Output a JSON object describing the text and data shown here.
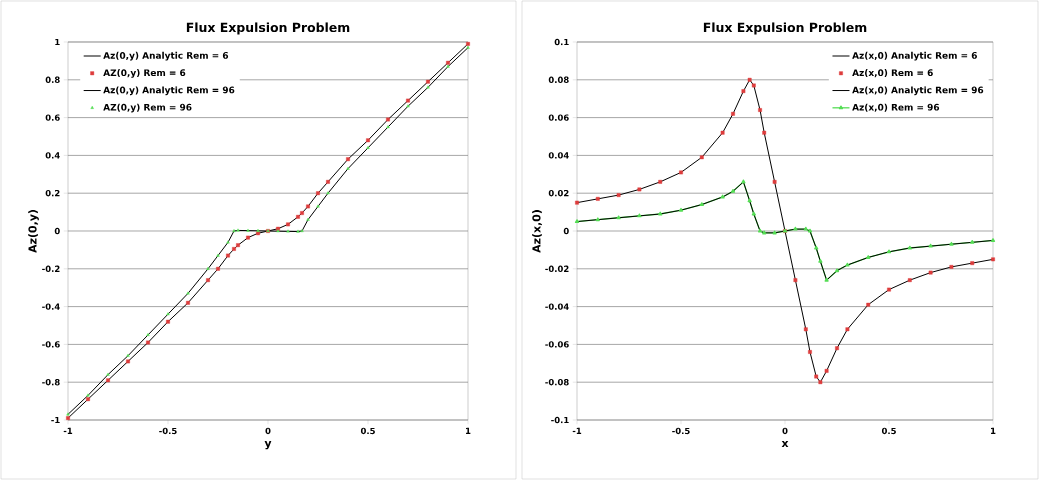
{
  "chart_data": [
    {
      "type": "line",
      "title": "Flux Expulsion Problem",
      "xlabel": "y",
      "ylabel": "Az(0,y)",
      "xlim": [
        -1,
        1
      ],
      "ylim": [
        -1,
        1
      ],
      "xticks": [
        -1,
        -0.5,
        0,
        0.5,
        1
      ],
      "yticks": [
        -1,
        -0.8,
        -0.6,
        -0.4,
        -0.2,
        0,
        0.2,
        0.4,
        0.6,
        0.8,
        1
      ],
      "grid": "y",
      "legend": "top left",
      "x": [
        -1,
        -0.9,
        -0.8,
        -0.7,
        -0.6,
        -0.5,
        -0.4,
        -0.3,
        -0.25,
        -0.2,
        -0.17,
        -0.15,
        -0.1,
        -0.05,
        0,
        0.05,
        0.1,
        0.15,
        0.17,
        0.2,
        0.25,
        0.3,
        0.4,
        0.5,
        0.6,
        0.7,
        0.8,
        0.9,
        1
      ],
      "series": [
        {
          "name": "Az(0,y) Analytic Rem = 6",
          "color": "#000000",
          "marker": "none",
          "values": [
            -0.99,
            -0.89,
            -0.79,
            -0.69,
            -0.59,
            -0.48,
            -0.38,
            -0.26,
            -0.2,
            -0.13,
            -0.095,
            -0.075,
            -0.035,
            -0.012,
            0,
            0.012,
            0.035,
            0.075,
            0.095,
            0.13,
            0.2,
            0.26,
            0.38,
            0.48,
            0.59,
            0.69,
            0.79,
            0.89,
            0.99
          ]
        },
        {
          "name": "AZ(0,y) Rem = 6",
          "type": "scatter",
          "color": "#dd3c3c",
          "marker": "square",
          "values": [
            -0.99,
            -0.89,
            -0.79,
            -0.69,
            -0.59,
            -0.48,
            -0.38,
            -0.26,
            -0.2,
            -0.13,
            -0.095,
            -0.075,
            -0.035,
            -0.012,
            0,
            0.012,
            0.035,
            0.075,
            0.095,
            0.13,
            0.2,
            0.26,
            0.38,
            0.48,
            0.59,
            0.69,
            0.79,
            0.89,
            0.99
          ]
        },
        {
          "name": "Az(0,y) Analytic Rem = 96",
          "color": "#000000",
          "marker": "none",
          "values": [
            -0.97,
            -0.87,
            -0.76,
            -0.66,
            -0.55,
            -0.44,
            -0.33,
            -0.2,
            -0.13,
            -0.06,
            0,
            0.003,
            0.002,
            0.001,
            0,
            -0.001,
            -0.002,
            -0.003,
            0,
            0.06,
            0.13,
            0.2,
            0.33,
            0.44,
            0.55,
            0.66,
            0.76,
            0.87,
            0.97
          ]
        },
        {
          "name": "AZ(0,y) Rem = 96",
          "type": "scatter",
          "color": "#55dd55",
          "marker": "triangle",
          "values": [
            -0.97,
            -0.87,
            -0.76,
            -0.66,
            -0.55,
            -0.44,
            -0.33,
            -0.2,
            -0.13,
            -0.06,
            0,
            0.003,
            0.002,
            0.001,
            0,
            -0.001,
            -0.002,
            -0.003,
            0,
            0.06,
            0.13,
            0.2,
            0.33,
            0.44,
            0.55,
            0.66,
            0.76,
            0.87,
            0.97
          ]
        }
      ]
    },
    {
      "type": "line",
      "title": "Flux Expulsion Problem",
      "xlabel": "x",
      "ylabel": "Az(x,0)",
      "xlim": [
        -1,
        1
      ],
      "ylim": [
        -0.1,
        0.1
      ],
      "xticks": [
        -1,
        -0.5,
        0,
        0.5,
        1
      ],
      "yticks": [
        -0.1,
        -0.08,
        -0.06,
        -0.04,
        -0.02,
        0,
        0.02,
        0.04,
        0.06,
        0.08,
        0.1
      ],
      "grid": "y",
      "legend": "top right",
      "x": [
        -1,
        -0.9,
        -0.8,
        -0.7,
        -0.6,
        -0.5,
        -0.4,
        -0.3,
        -0.25,
        -0.2,
        -0.17,
        -0.15,
        -0.12,
        -0.1,
        -0.05,
        0,
        0.05,
        0.1,
        0.12,
        0.15,
        0.17,
        0.2,
        0.25,
        0.3,
        0.4,
        0.5,
        0.6,
        0.7,
        0.8,
        0.9,
        1
      ],
      "series": [
        {
          "name": "Az(x,0) Analytic Rem = 6",
          "color": "#000000",
          "marker": "none",
          "values": [
            0.015,
            0.017,
            0.019,
            0.022,
            0.026,
            0.031,
            0.039,
            0.052,
            0.062,
            0.074,
            0.08,
            0.077,
            0.064,
            0.052,
            0.026,
            0,
            -0.026,
            -0.052,
            -0.064,
            -0.077,
            -0.08,
            -0.074,
            -0.062,
            -0.052,
            -0.039,
            -0.031,
            -0.026,
            -0.022,
            -0.019,
            -0.017,
            -0.015
          ]
        },
        {
          "name": "Az(x,0)  Rem = 6",
          "type": "scatter",
          "color": "#dd3c3c",
          "marker": "square",
          "values": [
            0.015,
            0.017,
            0.019,
            0.022,
            0.026,
            0.031,
            0.039,
            0.052,
            0.062,
            0.074,
            0.08,
            0.077,
            0.064,
            0.052,
            0.026,
            0,
            -0.026,
            -0.052,
            -0.064,
            -0.077,
            -0.08,
            -0.074,
            -0.062,
            -0.052,
            -0.039,
            -0.031,
            -0.026,
            -0.022,
            -0.019,
            -0.017,
            -0.015
          ]
        },
        {
          "name": "Az(x,0) Analytic Rem = 96",
          "color": "#000000",
          "marker": "none",
          "values": [
            0.005,
            0.006,
            0.007,
            0.008,
            0.009,
            0.011,
            0.014,
            0.018,
            0.021,
            0.026,
            0.016,
            0.009,
            0.0,
            -0.001,
            -0.001,
            0,
            0.001,
            0.001,
            0.0,
            -0.009,
            -0.016,
            -0.026,
            -0.021,
            -0.018,
            -0.014,
            -0.011,
            -0.009,
            -0.008,
            -0.007,
            -0.006,
            -0.005
          ]
        },
        {
          "name": "Az(x,0) Rem = 96",
          "color": "#55dd55",
          "marker": "triangle",
          "values": [
            0.005,
            0.006,
            0.007,
            0.008,
            0.009,
            0.011,
            0.014,
            0.018,
            0.021,
            0.026,
            0.016,
            0.009,
            0.0,
            -0.001,
            -0.001,
            0,
            0.001,
            0.001,
            0.0,
            -0.009,
            -0.016,
            -0.026,
            -0.021,
            -0.018,
            -0.014,
            -0.011,
            -0.009,
            -0.008,
            -0.007,
            -0.006,
            -0.005
          ]
        }
      ]
    }
  ]
}
